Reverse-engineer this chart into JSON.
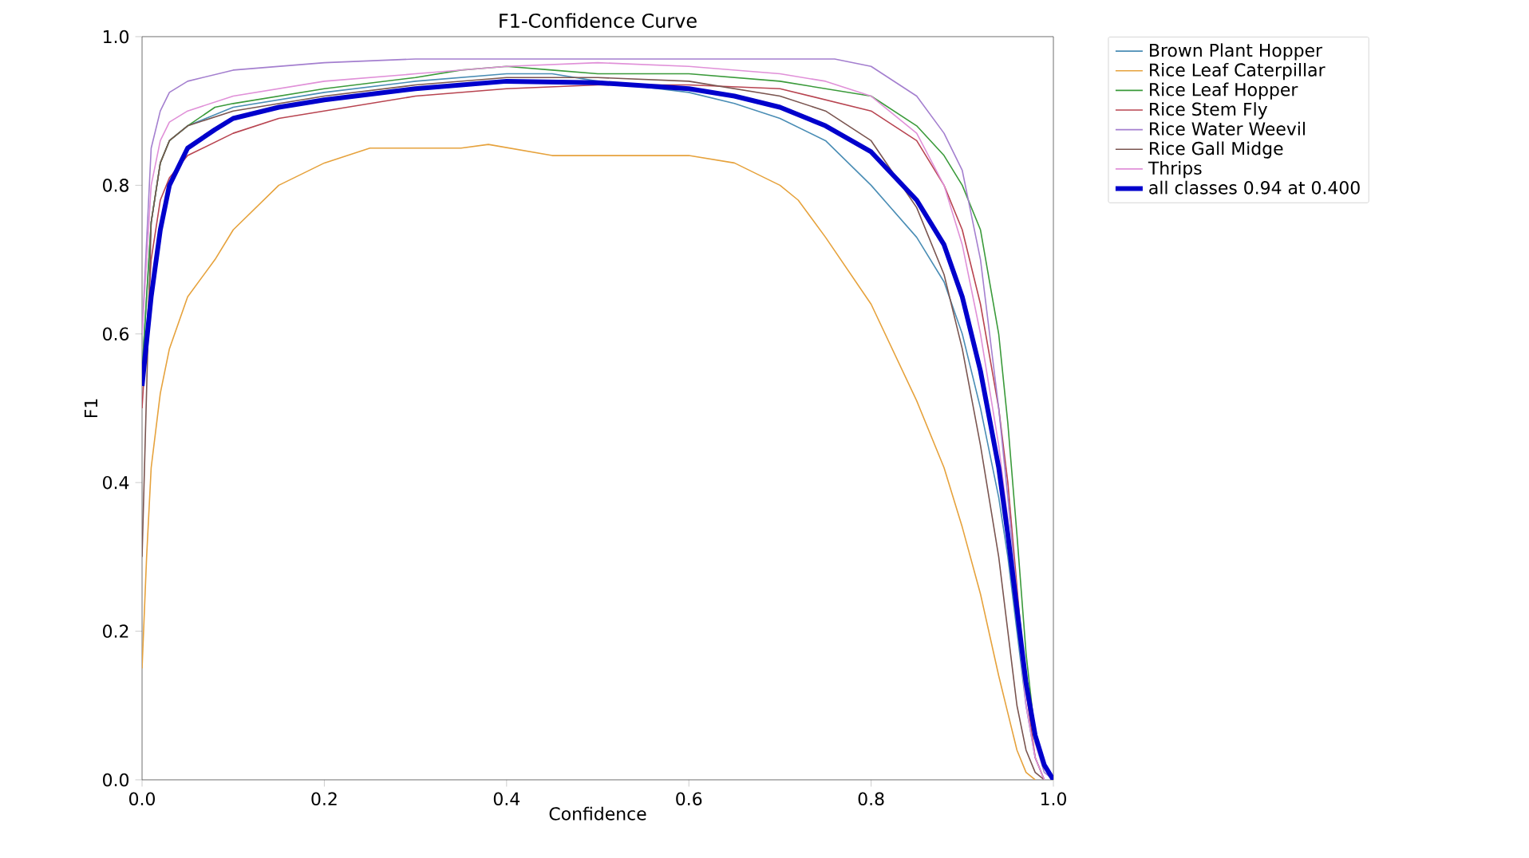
{
  "chart_data": {
    "type": "line",
    "title": "F1-Confidence Curve",
    "xlabel": "Confidence",
    "ylabel": "F1",
    "xlim": [
      0,
      1
    ],
    "ylim": [
      0,
      1
    ],
    "xticks": [
      {
        "value": 0,
        "label": "0.0"
      },
      0.2,
      0.4,
      0.6,
      0.8,
      {
        "value": 1,
        "label": "1.0"
      }
    ],
    "yticks": [
      {
        "value": 0,
        "label": "0.0"
      },
      0.2,
      0.4,
      0.6,
      0.8,
      {
        "value": 1,
        "label": "1.0"
      }
    ],
    "legend": "right",
    "line_style": "solid",
    "series": [
      {
        "name": "Brown Plant Hopper",
        "color": "#4a8db5",
        "x": [
          0,
          0.01,
          0.02,
          0.03,
          0.05,
          0.1,
          0.2,
          0.3,
          0.4,
          0.45,
          0.5,
          0.6,
          0.65,
          0.7,
          0.75,
          0.8,
          0.85,
          0.88,
          0.9,
          0.92,
          0.94,
          0.95,
          0.96,
          0.97,
          0.98,
          0.99
        ],
        "values": [
          0.55,
          0.75,
          0.83,
          0.86,
          0.88,
          0.905,
          0.925,
          0.94,
          0.95,
          0.95,
          0.94,
          0.925,
          0.91,
          0.89,
          0.86,
          0.8,
          0.73,
          0.67,
          0.6,
          0.5,
          0.38,
          0.3,
          0.2,
          0.1,
          0.03,
          0
        ]
      },
      {
        "name": "Rice Leaf Caterpillar",
        "color": "#e6a23c",
        "x": [
          0,
          0.005,
          0.01,
          0.02,
          0.03,
          0.05,
          0.08,
          0.1,
          0.15,
          0.2,
          0.25,
          0.3,
          0.35,
          0.38,
          0.45,
          0.5,
          0.6,
          0.65,
          0.7,
          0.72,
          0.75,
          0.8,
          0.85,
          0.88,
          0.9,
          0.92,
          0.94,
          0.95,
          0.96,
          0.97,
          0.98
        ],
        "values": [
          0.15,
          0.3,
          0.42,
          0.52,
          0.58,
          0.65,
          0.7,
          0.74,
          0.8,
          0.83,
          0.85,
          0.85,
          0.85,
          0.855,
          0.84,
          0.84,
          0.84,
          0.83,
          0.8,
          0.78,
          0.73,
          0.64,
          0.51,
          0.42,
          0.34,
          0.25,
          0.14,
          0.09,
          0.04,
          0.01,
          0
        ]
      },
      {
        "name": "Rice Leaf Hopper",
        "color": "#3a9a3a",
        "x": [
          0,
          0.01,
          0.02,
          0.03,
          0.05,
          0.08,
          0.1,
          0.15,
          0.2,
          0.3,
          0.35,
          0.4,
          0.45,
          0.5,
          0.6,
          0.7,
          0.8,
          0.85,
          0.88,
          0.9,
          0.92,
          0.94,
          0.95,
          0.96,
          0.97,
          0.98,
          0.99,
          1
        ],
        "values": [
          0.55,
          0.75,
          0.83,
          0.86,
          0.88,
          0.905,
          0.91,
          0.92,
          0.93,
          0.945,
          0.955,
          0.96,
          0.955,
          0.95,
          0.95,
          0.94,
          0.92,
          0.88,
          0.84,
          0.8,
          0.74,
          0.6,
          0.48,
          0.33,
          0.17,
          0.06,
          0.02,
          0
        ]
      },
      {
        "name": "Rice Stem Fly",
        "color": "#b84450",
        "x": [
          0,
          0.01,
          0.02,
          0.03,
          0.05,
          0.1,
          0.15,
          0.2,
          0.3,
          0.4,
          0.5,
          0.6,
          0.7,
          0.8,
          0.85,
          0.88,
          0.9,
          0.92,
          0.94,
          0.95,
          0.96,
          0.97,
          0.98,
          0.99
        ],
        "values": [
          0.5,
          0.7,
          0.78,
          0.81,
          0.84,
          0.87,
          0.89,
          0.9,
          0.92,
          0.93,
          0.935,
          0.935,
          0.93,
          0.9,
          0.86,
          0.8,
          0.74,
          0.64,
          0.5,
          0.4,
          0.26,
          0.12,
          0.03,
          0
        ]
      },
      {
        "name": "Rice Water Weevil",
        "color": "#a47fcf",
        "x": [
          0,
          0.01,
          0.02,
          0.03,
          0.05,
          0.1,
          0.2,
          0.3,
          0.5,
          0.7,
          0.76,
          0.8,
          0.85,
          0.88,
          0.9,
          0.92,
          0.94,
          0.95,
          0.96,
          0.97,
          0.98,
          0.99,
          1
        ],
        "values": [
          0.6,
          0.85,
          0.9,
          0.925,
          0.94,
          0.955,
          0.965,
          0.97,
          0.97,
          0.97,
          0.97,
          0.96,
          0.92,
          0.87,
          0.82,
          0.7,
          0.5,
          0.38,
          0.25,
          0.13,
          0.05,
          0.01,
          0
        ]
      },
      {
        "name": "Rice Gall Midge",
        "color": "#7a5550",
        "x": [
          0,
          0.01,
          0.02,
          0.03,
          0.05,
          0.1,
          0.2,
          0.3,
          0.4,
          0.5,
          0.6,
          0.7,
          0.75,
          0.8,
          0.85,
          0.88,
          0.9,
          0.92,
          0.94,
          0.95,
          0.96,
          0.97,
          0.98,
          0.99
        ],
        "values": [
          0.3,
          0.75,
          0.83,
          0.86,
          0.88,
          0.9,
          0.92,
          0.935,
          0.945,
          0.945,
          0.94,
          0.92,
          0.9,
          0.86,
          0.77,
          0.68,
          0.58,
          0.45,
          0.3,
          0.2,
          0.1,
          0.04,
          0.01,
          0
        ]
      },
      {
        "name": "Thrips",
        "color": "#e090d8",
        "x": [
          0,
          0.01,
          0.02,
          0.03,
          0.05,
          0.1,
          0.2,
          0.3,
          0.4,
          0.5,
          0.6,
          0.7,
          0.75,
          0.8,
          0.85,
          0.88,
          0.9,
          0.92,
          0.94,
          0.95,
          0.96,
          0.97,
          0.98,
          0.99
        ],
        "values": [
          0.6,
          0.8,
          0.86,
          0.885,
          0.9,
          0.92,
          0.94,
          0.95,
          0.96,
          0.965,
          0.96,
          0.95,
          0.94,
          0.92,
          0.87,
          0.8,
          0.72,
          0.6,
          0.45,
          0.35,
          0.22,
          0.1,
          0.03,
          0
        ]
      },
      {
        "name": "all classes 0.94 at 0.400",
        "color": "#0000cc",
        "x": [
          0,
          0.01,
          0.02,
          0.03,
          0.05,
          0.08,
          0.1,
          0.15,
          0.2,
          0.3,
          0.4,
          0.5,
          0.6,
          0.65,
          0.7,
          0.75,
          0.8,
          0.85,
          0.88,
          0.9,
          0.92,
          0.94,
          0.95,
          0.96,
          0.97,
          0.98,
          0.99,
          1
        ],
        "values": [
          0.53,
          0.65,
          0.74,
          0.8,
          0.85,
          0.875,
          0.89,
          0.905,
          0.915,
          0.93,
          0.94,
          0.938,
          0.93,
          0.92,
          0.905,
          0.88,
          0.845,
          0.78,
          0.72,
          0.65,
          0.55,
          0.42,
          0.33,
          0.23,
          0.13,
          0.06,
          0.02,
          0
        ]
      }
    ]
  }
}
